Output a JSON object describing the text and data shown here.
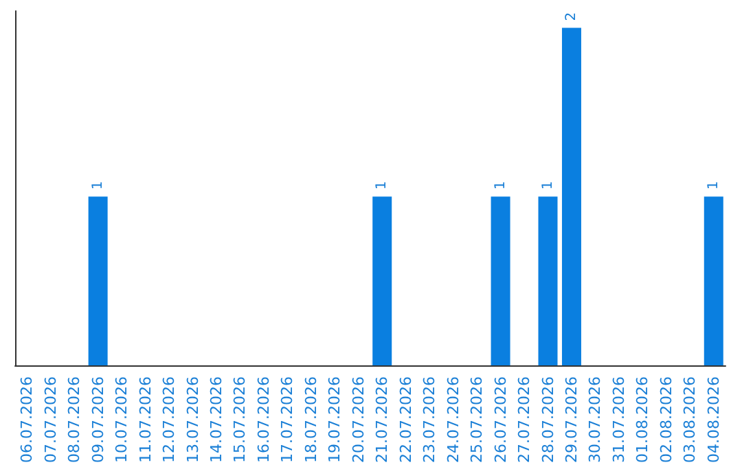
{
  "chart_data": {
    "type": "bar",
    "categories": [
      "06.07.2026",
      "07.07.2026",
      "08.07.2026",
      "09.07.2026",
      "10.07.2026",
      "11.07.2026",
      "12.07.2026",
      "13.07.2026",
      "14.07.2026",
      "15.07.2026",
      "16.07.2026",
      "17.07.2026",
      "18.07.2026",
      "19.07.2026",
      "20.07.2026",
      "21.07.2026",
      "22.07.2026",
      "23.07.2026",
      "24.07.2026",
      "25.07.2026",
      "26.07.2026",
      "27.07.2026",
      "28.07.2026",
      "29.07.2026",
      "30.07.2026",
      "31.07.2026",
      "01.08.2026",
      "02.08.2026",
      "03.08.2026",
      "04.08.2026"
    ],
    "values": [
      0,
      0,
      0,
      1,
      0,
      0,
      0,
      0,
      0,
      0,
      0,
      0,
      0,
      0,
      0,
      1,
      0,
      0,
      0,
      0,
      1,
      0,
      1,
      2,
      0,
      0,
      0,
      0,
      0,
      1
    ],
    "value_labels": [
      null,
      null,
      null,
      "1",
      null,
      null,
      null,
      null,
      null,
      null,
      null,
      null,
      null,
      null,
      null,
      "1",
      null,
      null,
      null,
      null,
      "1",
      null,
      "1",
      "2",
      null,
      null,
      null,
      null,
      null,
      "1"
    ],
    "color": "#0a7fe0"
  }
}
